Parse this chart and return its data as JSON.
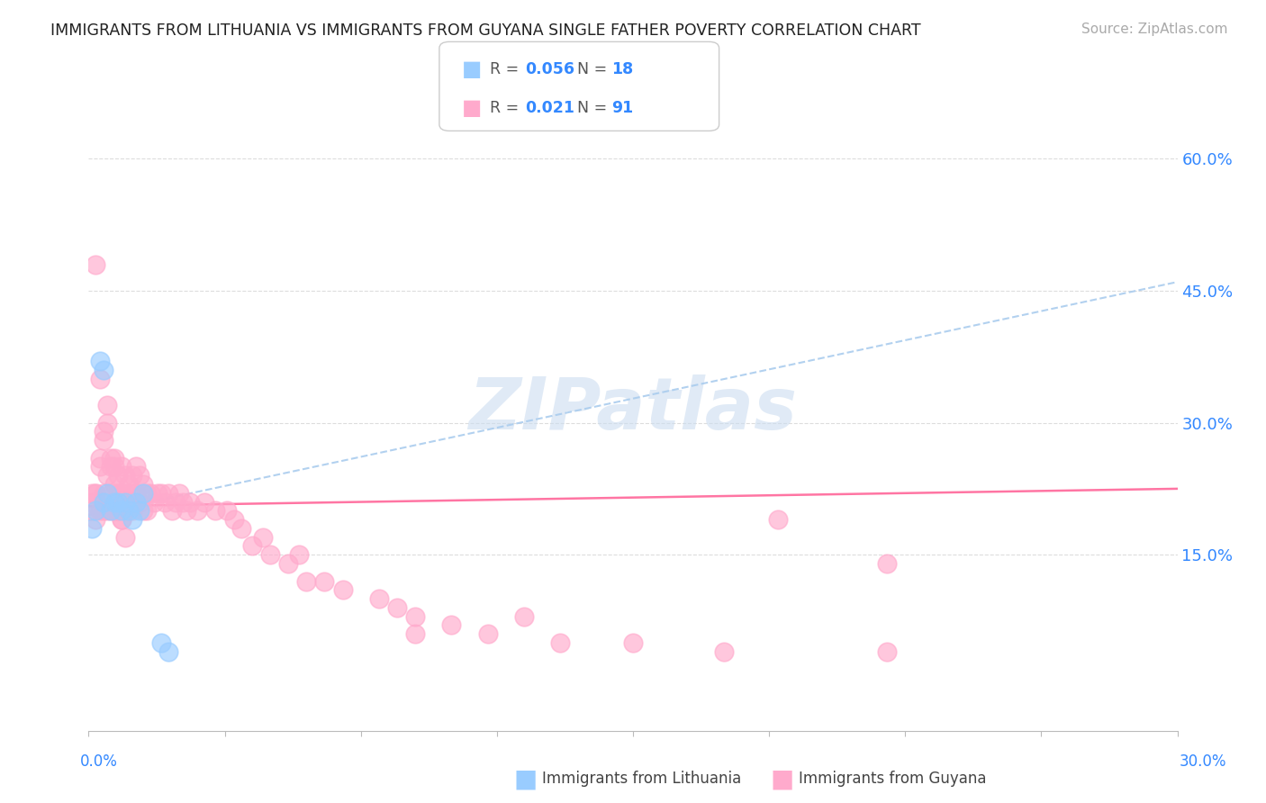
{
  "title": "IMMIGRANTS FROM LITHUANIA VS IMMIGRANTS FROM GUYANA SINGLE FATHER POVERTY CORRELATION CHART",
  "source": "Source: ZipAtlas.com",
  "ylabel": "Single Father Poverty",
  "right_y_ticks": [
    0.15,
    0.3,
    0.45,
    0.6
  ],
  "right_y_labels": [
    "15.0%",
    "30.0%",
    "45.0%",
    "60.0%"
  ],
  "xlim": [
    0.0,
    0.3
  ],
  "ylim": [
    -0.05,
    0.68
  ],
  "lithuania_color": "#99ccff",
  "guyana_color": "#ffaacc",
  "trendline_lith_color": "#99bbdd",
  "trendline_guy_color": "#ff6699",
  "watermark_color": "#ccddee",
  "lith_R": "0.056",
  "lith_N": "18",
  "guy_R": "0.021",
  "guy_N": "91",
  "lith_x": [
    0.001,
    0.002,
    0.003,
    0.004,
    0.004,
    0.005,
    0.006,
    0.007,
    0.008,
    0.009,
    0.01,
    0.011,
    0.012,
    0.013,
    0.014,
    0.015,
    0.02,
    0.022
  ],
  "lith_y": [
    0.18,
    0.2,
    0.37,
    0.36,
    0.21,
    0.22,
    0.2,
    0.21,
    0.21,
    0.2,
    0.21,
    0.2,
    0.19,
    0.21,
    0.2,
    0.22,
    0.05,
    0.04
  ],
  "guy_x": [
    0.001,
    0.001,
    0.002,
    0.002,
    0.002,
    0.003,
    0.003,
    0.003,
    0.004,
    0.004,
    0.004,
    0.005,
    0.005,
    0.005,
    0.006,
    0.006,
    0.006,
    0.007,
    0.007,
    0.007,
    0.008,
    0.008,
    0.008,
    0.009,
    0.009,
    0.009,
    0.01,
    0.01,
    0.01,
    0.011,
    0.011,
    0.012,
    0.012,
    0.012,
    0.013,
    0.013,
    0.014,
    0.014,
    0.015,
    0.015,
    0.016,
    0.016,
    0.017,
    0.018,
    0.019,
    0.02,
    0.021,
    0.022,
    0.023,
    0.024,
    0.025,
    0.026,
    0.027,
    0.028,
    0.03,
    0.032,
    0.035,
    0.038,
    0.04,
    0.042,
    0.045,
    0.048,
    0.05,
    0.055,
    0.058,
    0.06,
    0.065,
    0.07,
    0.08,
    0.085,
    0.09,
    0.1,
    0.11,
    0.13,
    0.15,
    0.175,
    0.22,
    0.001,
    0.002,
    0.003,
    0.004,
    0.005,
    0.006,
    0.007,
    0.008,
    0.009,
    0.01,
    0.22,
    0.19,
    0.12,
    0.09
  ],
  "guy_y": [
    0.22,
    0.2,
    0.48,
    0.22,
    0.19,
    0.35,
    0.25,
    0.2,
    0.28,
    0.22,
    0.2,
    0.3,
    0.24,
    0.2,
    0.25,
    0.22,
    0.2,
    0.26,
    0.23,
    0.2,
    0.24,
    0.22,
    0.2,
    0.25,
    0.22,
    0.19,
    0.24,
    0.22,
    0.2,
    0.23,
    0.21,
    0.24,
    0.22,
    0.2,
    0.25,
    0.22,
    0.24,
    0.21,
    0.23,
    0.2,
    0.22,
    0.2,
    0.22,
    0.21,
    0.22,
    0.22,
    0.21,
    0.22,
    0.2,
    0.21,
    0.22,
    0.21,
    0.2,
    0.21,
    0.2,
    0.21,
    0.2,
    0.2,
    0.19,
    0.18,
    0.16,
    0.17,
    0.15,
    0.14,
    0.15,
    0.12,
    0.12,
    0.11,
    0.1,
    0.09,
    0.08,
    0.07,
    0.06,
    0.05,
    0.05,
    0.04,
    0.04,
    0.21,
    0.22,
    0.26,
    0.29,
    0.32,
    0.26,
    0.25,
    0.2,
    0.19,
    0.17,
    0.14,
    0.19,
    0.08,
    0.06
  ]
}
